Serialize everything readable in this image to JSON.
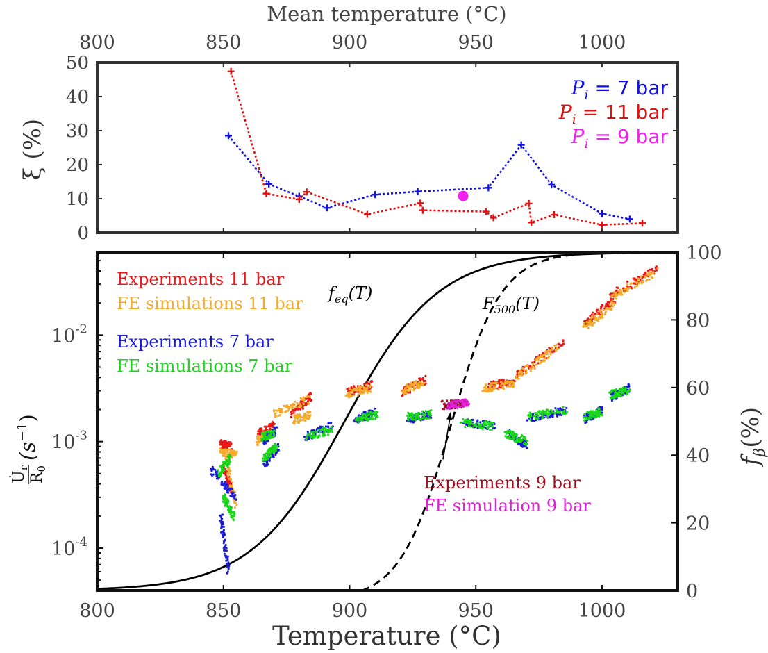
{
  "chart_data": [
    {
      "type": "line",
      "top_axis_label": "Mean temperature (°C)",
      "xlim": [
        800,
        1030
      ],
      "x_ticks": [
        800,
        850,
        900,
        950,
        1000
      ],
      "ylabel": "ξ (%)",
      "ylim": [
        0,
        50
      ],
      "y_ticks": [
        0,
        10,
        20,
        30,
        40,
        50
      ],
      "legend_position": "top-right",
      "series": [
        {
          "name": "P_i = 7 bar",
          "legend_main": "P",
          "legend_sub": "i",
          "legend_rest": " = 7 bar",
          "color": "#1010e0",
          "x": [
            852,
            868,
            880,
            891,
            910,
            927,
            955,
            968,
            980,
            1000,
            1011
          ],
          "y": [
            28.5,
            14.3,
            10.7,
            7.3,
            11.2,
            12.1,
            13.2,
            25.8,
            14.1,
            5.6,
            4.0
          ]
        },
        {
          "name": "P_i = 11 bar",
          "legend_main": "P",
          "legend_sub": "i",
          "legend_rest": " = 11 bar",
          "color": "#e01010",
          "x": [
            853,
            867,
            880,
            883,
            907,
            928,
            929,
            954,
            957,
            971,
            972,
            981,
            1000,
            1016
          ],
          "y": [
            47.4,
            11.5,
            9.8,
            12.0,
            5.4,
            8.7,
            6.6,
            6.2,
            4.4,
            8.6,
            3.0,
            5.3,
            2.3,
            2.8
          ]
        },
        {
          "name": "P_i = 9 bar",
          "legend_main": "P",
          "legend_sub": "i",
          "legend_rest": " = 9 bar",
          "color": "#f020f0",
          "x": [
            945
          ],
          "y": [
            10.8
          ]
        }
      ]
    },
    {
      "type": "scatter",
      "xlabel": "Temperature (°C)",
      "xlim": [
        800,
        1030
      ],
      "x_ticks": [
        800,
        850,
        900,
        950,
        1000
      ],
      "ylabel_left": "U̇r/R0 (s⁻¹)",
      "ylabel_left_num": "U̇",
      "ylabel_left_num_sub": "r",
      "ylabel_left_den": "R",
      "ylabel_left_den_sub": "0",
      "ylabel_left_unit": "(s",
      "ylabel_left_unit_sup": "−1",
      "ylabel_left_unit_close": ")",
      "y_scale": "log",
      "ylim": [
        4e-05,
        0.06
      ],
      "y_ticks_base": "10",
      "y_ticks": [
        {
          "value": 0.0001,
          "exp": "-4"
        },
        {
          "value": 0.001,
          "exp": "-3"
        },
        {
          "value": 0.01,
          "exp": "-2"
        }
      ],
      "ylabel_right": "f_β (%)",
      "ylabel_right_main": "f",
      "ylabel_right_sub": "β",
      "ylabel_right_unit": "(%)",
      "ylim_right": [
        0,
        100
      ],
      "y_ticks_right": [
        0,
        20,
        40,
        60,
        80,
        100
      ],
      "legend_items": [
        {
          "label": "Experiments 11 bar",
          "color": "#e81818"
        },
        {
          "label": "FE simulations 11 bar",
          "color": "#f5aa2a"
        },
        {
          "label": "Experiments 7 bar",
          "color": "#1b1bd6"
        },
        {
          "label": "FE simulations 7 bar",
          "color": "#18d818"
        }
      ],
      "nine_bar_labels": [
        {
          "label": "Experiments 9 bar",
          "color": "#a01020"
        },
        {
          "label": "FE simulation 9 bar",
          "color": "#e020d8"
        }
      ],
      "curves": [
        {
          "name": "f_eq(T)",
          "label_main": "f",
          "label_sub": "eq",
          "label_rest": "(T)",
          "style": "solid",
          "center_T": 898,
          "width": 18.5
        },
        {
          "name": "F_500(T)",
          "label_main": "F",
          "label_sub": "500",
          "label_rest": "(T)",
          "style": "dashed",
          "center_T": 940,
          "width": 10
        }
      ],
      "clusters": [
        {
          "group": "exp11",
          "color": "#e81818",
          "segments": [
            [
              849,
              0.00095,
              853,
              0.0009
            ],
            [
              850,
              0.0006,
              854,
              0.0003
            ],
            [
              864,
              0.0012,
              870,
              0.0014
            ],
            [
              877,
              0.0018,
              885,
              0.0027
            ],
            [
              899,
              0.0029,
              909,
              0.0034
            ],
            [
              921,
              0.0029,
              930,
              0.0038
            ],
            [
              955,
              0.0033,
              965,
              0.0037
            ],
            [
              966,
              0.0042,
              985,
              0.0088
            ],
            [
              993,
              0.013,
              1005,
              0.021
            ],
            [
              1003,
              0.023,
              1022,
              0.042
            ]
          ]
        },
        {
          "group": "sim11",
          "color": "#f5aa2a",
          "segments": [
            [
              849,
              0.0008,
              855,
              0.00075
            ],
            [
              851,
              0.0007,
              855,
              0.00025
            ],
            [
              863,
              0.001,
              868,
              0.0012
            ],
            [
              870,
              0.0018,
              884,
              0.0025
            ],
            [
              878,
              0.0016,
              885,
              0.0018
            ],
            [
              899,
              0.0028,
              908,
              0.0032
            ],
            [
              921,
              0.003,
              929,
              0.0036
            ],
            [
              953,
              0.0031,
              966,
              0.0036
            ],
            [
              966,
              0.004,
              984,
              0.0082
            ],
            [
              993,
              0.012,
              1005,
              0.019
            ],
            [
              1003,
              0.022,
              1022,
              0.04
            ]
          ]
        },
        {
          "group": "exp7",
          "color": "#1b1bd6",
          "segments": [
            [
              845,
              0.00055,
              855,
              0.0003
            ],
            [
              849,
              0.0002,
              852,
              6e-05
            ],
            [
              866,
              0.0006,
              872,
              0.0009
            ],
            [
              866,
              0.001,
              871,
              0.0013
            ],
            [
              882,
              0.0011,
              893,
              0.0014
            ],
            [
              902,
              0.0016,
              911,
              0.0019
            ],
            [
              923,
              0.0016,
              932,
              0.0018
            ],
            [
              945,
              0.0015,
              958,
              0.0014
            ],
            [
              963,
              0.0012,
              970,
              0.0009
            ],
            [
              970,
              0.0016,
              986,
              0.002
            ],
            [
              993,
              0.0016,
              1000,
              0.002
            ],
            [
              1003,
              0.0026,
              1011,
              0.0032
            ]
          ]
        },
        {
          "group": "sim7",
          "color": "#18d818",
          "segments": [
            [
              850,
              0.0003,
              854,
              0.0002
            ],
            [
              848,
              0.0005,
              853,
              0.0007
            ],
            [
              866,
              0.0007,
              871,
              0.0009
            ],
            [
              865,
              0.0011,
              870,
              0.0012
            ],
            [
              883,
              0.0011,
              893,
              0.0013
            ],
            [
              902,
              0.0016,
              911,
              0.0018
            ],
            [
              923,
              0.0017,
              932,
              0.0018
            ],
            [
              944,
              0.0015,
              957,
              0.0014
            ],
            [
              962,
              0.0012,
              970,
              0.001
            ],
            [
              971,
              0.0017,
              986,
              0.002
            ],
            [
              993,
              0.0017,
              1000,
              0.0019
            ],
            [
              1003,
              0.0027,
              1011,
              0.0031
            ]
          ]
        },
        {
          "group": "exp9",
          "color": "#a01020",
          "segments": [
            [
              937,
              0.0022,
              947,
              0.0023
            ]
          ]
        },
        {
          "group": "sim9",
          "color": "#e020d8",
          "segments": [
            [
              939,
              0.0022,
              947,
              0.0023
            ]
          ]
        }
      ],
      "annotation_arrow": {
        "from_T": 937,
        "from_y": 0.00068,
        "to_T": 940,
        "to_y": 0.0019
      }
    }
  ]
}
